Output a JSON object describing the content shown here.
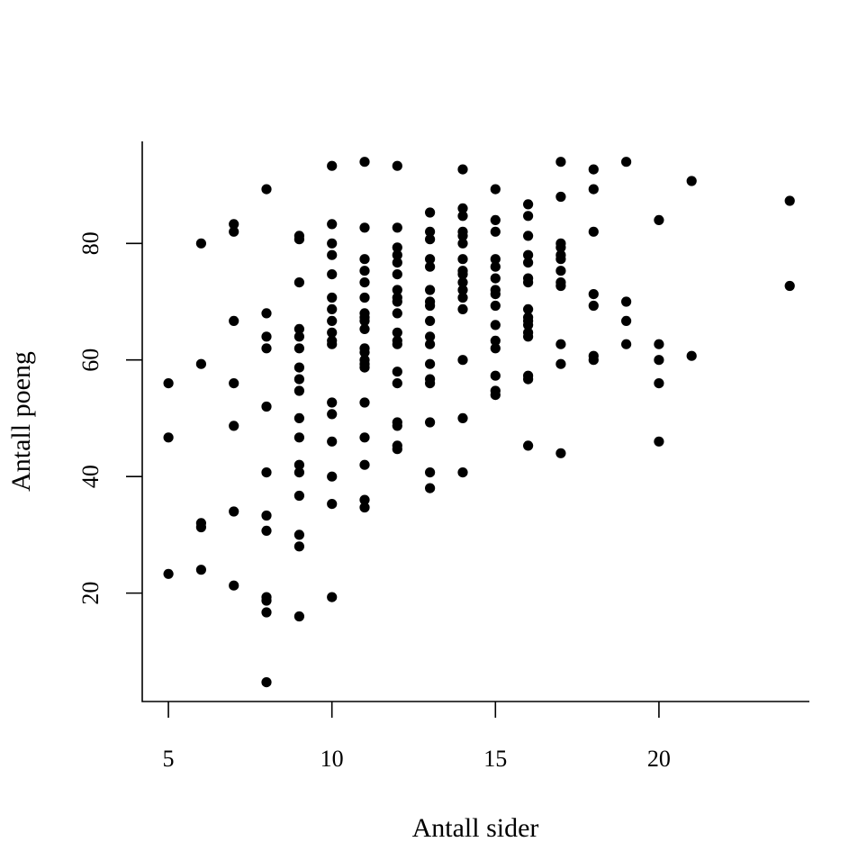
{
  "chart_data": {
    "type": "scatter",
    "title": "",
    "xlabel": "Antall sider",
    "ylabel": "Antall poeng",
    "xlim": [
      4.2,
      24.6
    ],
    "ylim": [
      1.4,
      97.5
    ],
    "x_ticks": [
      "5",
      "10",
      "15",
      "20"
    ],
    "y_ticks": [
      "20",
      "40",
      "60",
      "80"
    ],
    "grid": false,
    "legend": "none",
    "point_color": "#000000",
    "points": [
      [
        5,
        56
      ],
      [
        5,
        46.7
      ],
      [
        5,
        23.3
      ],
      [
        6,
        80
      ],
      [
        6,
        59.3
      ],
      [
        6,
        32
      ],
      [
        6,
        31.3
      ],
      [
        6,
        24
      ],
      [
        7,
        83.3
      ],
      [
        7,
        82
      ],
      [
        7,
        66.7
      ],
      [
        7,
        56
      ],
      [
        7,
        48.7
      ],
      [
        7,
        34
      ],
      [
        7,
        21.3
      ],
      [
        8,
        89.3
      ],
      [
        8,
        68
      ],
      [
        8,
        64
      ],
      [
        8,
        62
      ],
      [
        8,
        52
      ],
      [
        8,
        40.7
      ],
      [
        8,
        33.3
      ],
      [
        8,
        30.7
      ],
      [
        8,
        19.3
      ],
      [
        8,
        18.7
      ],
      [
        8,
        16.7
      ],
      [
        8,
        4.7
      ],
      [
        9,
        81.3
      ],
      [
        9,
        80.7
      ],
      [
        9,
        73.3
      ],
      [
        9,
        65.3
      ],
      [
        9,
        64
      ],
      [
        9,
        62
      ],
      [
        9,
        58.7
      ],
      [
        9,
        56.7
      ],
      [
        9,
        54.7
      ],
      [
        9,
        50
      ],
      [
        9,
        46.7
      ],
      [
        9,
        42
      ],
      [
        9,
        40.7
      ],
      [
        9,
        36.7
      ],
      [
        9,
        30
      ],
      [
        9,
        28
      ],
      [
        9,
        16
      ],
      [
        10,
        93.3
      ],
      [
        10,
        83.3
      ],
      [
        10,
        80
      ],
      [
        10,
        78
      ],
      [
        10,
        74.7
      ],
      [
        10,
        70.7
      ],
      [
        10,
        68.7
      ],
      [
        10,
        66.7
      ],
      [
        10,
        64.7
      ],
      [
        10,
        63.3
      ],
      [
        10,
        62.7
      ],
      [
        10,
        52.7
      ],
      [
        10,
        50.7
      ],
      [
        10,
        46
      ],
      [
        10,
        40
      ],
      [
        10,
        35.3
      ],
      [
        10,
        19.3
      ],
      [
        11,
        94
      ],
      [
        11,
        82.7
      ],
      [
        11,
        77.3
      ],
      [
        11,
        75.3
      ],
      [
        11,
        73.3
      ],
      [
        11,
        70.7
      ],
      [
        11,
        68
      ],
      [
        11,
        67.3
      ],
      [
        11,
        66.7
      ],
      [
        11,
        65.3
      ],
      [
        11,
        62
      ],
      [
        11,
        61.3
      ],
      [
        11,
        60
      ],
      [
        11,
        59.3
      ],
      [
        11,
        58.7
      ],
      [
        11,
        52.7
      ],
      [
        11,
        46.7
      ],
      [
        11,
        42
      ],
      [
        11,
        36
      ],
      [
        11,
        34.7
      ],
      [
        12,
        93.3
      ],
      [
        12,
        82.7
      ],
      [
        12,
        79.3
      ],
      [
        12,
        78
      ],
      [
        12,
        76.7
      ],
      [
        12,
        74.7
      ],
      [
        12,
        72
      ],
      [
        12,
        70.7
      ],
      [
        12,
        70
      ],
      [
        12,
        68
      ],
      [
        12,
        64.7
      ],
      [
        12,
        63.3
      ],
      [
        12,
        62.7
      ],
      [
        12,
        58
      ],
      [
        12,
        56
      ],
      [
        12,
        49.3
      ],
      [
        12,
        48.7
      ],
      [
        12,
        45.3
      ],
      [
        12,
        44.7
      ],
      [
        13,
        85.3
      ],
      [
        13,
        82
      ],
      [
        13,
        80.7
      ],
      [
        13,
        77.3
      ],
      [
        13,
        76
      ],
      [
        13,
        72
      ],
      [
        13,
        70
      ],
      [
        13,
        69.3
      ],
      [
        13,
        66.7
      ],
      [
        13,
        64
      ],
      [
        13,
        62.7
      ],
      [
        13,
        59.3
      ],
      [
        13,
        56.7
      ],
      [
        13,
        56
      ],
      [
        13,
        49.3
      ],
      [
        13,
        40.7
      ],
      [
        13,
        38
      ],
      [
        14,
        92.7
      ],
      [
        14,
        86
      ],
      [
        14,
        84.7
      ],
      [
        14,
        82
      ],
      [
        14,
        81.3
      ],
      [
        14,
        80
      ],
      [
        14,
        77.3
      ],
      [
        14,
        75.3
      ],
      [
        14,
        74.7
      ],
      [
        14,
        73.3
      ],
      [
        14,
        72
      ],
      [
        14,
        70.7
      ],
      [
        14,
        68.7
      ],
      [
        14,
        60
      ],
      [
        14,
        50
      ],
      [
        14,
        40.7
      ],
      [
        15,
        89.3
      ],
      [
        15,
        84
      ],
      [
        15,
        82
      ],
      [
        15,
        77.3
      ],
      [
        15,
        76
      ],
      [
        15,
        74
      ],
      [
        15,
        72
      ],
      [
        15,
        71.3
      ],
      [
        15,
        69.3
      ],
      [
        15,
        66
      ],
      [
        15,
        63.3
      ],
      [
        15,
        62
      ],
      [
        15,
        57.3
      ],
      [
        15,
        54.7
      ],
      [
        15,
        54
      ],
      [
        16,
        86.7
      ],
      [
        16,
        84.7
      ],
      [
        16,
        81.3
      ],
      [
        16,
        78
      ],
      [
        16,
        76.7
      ],
      [
        16,
        74
      ],
      [
        16,
        73.3
      ],
      [
        16,
        68.7
      ],
      [
        16,
        67.3
      ],
      [
        16,
        66.7
      ],
      [
        16,
        66
      ],
      [
        16,
        64.7
      ],
      [
        16,
        64
      ],
      [
        16,
        57.3
      ],
      [
        16,
        56.7
      ],
      [
        16,
        45.3
      ],
      [
        17,
        94
      ],
      [
        17,
        88
      ],
      [
        17,
        80
      ],
      [
        17,
        79.3
      ],
      [
        17,
        78
      ],
      [
        17,
        77.3
      ],
      [
        17,
        75.3
      ],
      [
        17,
        73.3
      ],
      [
        17,
        72.7
      ],
      [
        17,
        62.7
      ],
      [
        17,
        59.3
      ],
      [
        17,
        44
      ],
      [
        18,
        92.7
      ],
      [
        18,
        89.3
      ],
      [
        18,
        82
      ],
      [
        18,
        71.3
      ],
      [
        18,
        69.3
      ],
      [
        18,
        60.7
      ],
      [
        18,
        60
      ],
      [
        19,
        94
      ],
      [
        19,
        70
      ],
      [
        19,
        66.7
      ],
      [
        19,
        62.7
      ],
      [
        20,
        84
      ],
      [
        20,
        62.7
      ],
      [
        20,
        60
      ],
      [
        20,
        56
      ],
      [
        20,
        46
      ],
      [
        21,
        90.7
      ],
      [
        21,
        60.7
      ],
      [
        24,
        87.3
      ],
      [
        24,
        72.7
      ]
    ]
  }
}
